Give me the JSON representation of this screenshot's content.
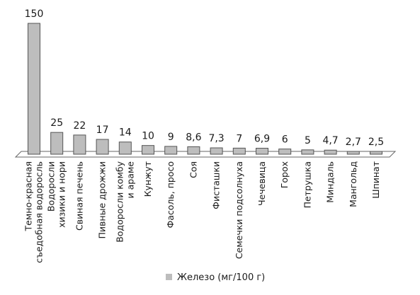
{
  "chart_data": {
    "type": "bar",
    "categories": [
      [
        "Темно-красная",
        "съедобная водоросль"
      ],
      [
        "Водоросли",
        "хизики и нори"
      ],
      [
        "Свиная печень"
      ],
      [
        "Пивные дрожжи"
      ],
      [
        "Водоросли комбу",
        "и араме"
      ],
      [
        "Кунжут"
      ],
      [
        "Фасоль, просо"
      ],
      [
        "Соя"
      ],
      [
        "Фисташки"
      ],
      [
        "Семечки подсолнуха"
      ],
      [
        "Чечевица"
      ],
      [
        "Горох"
      ],
      [
        "Петрушка"
      ],
      [
        "Миндаль"
      ],
      [
        "Мангольд"
      ],
      [
        "Шпинат"
      ]
    ],
    "series": [
      {
        "name": "Железо (мг/100 г)",
        "values": [
          150,
          25,
          22,
          17,
          14,
          10,
          9,
          8.6,
          7.3,
          7,
          6.9,
          6,
          5,
          4.7,
          2.7,
          2.5
        ],
        "value_labels": [
          "150",
          "25",
          "22",
          "17",
          "14",
          "10",
          "9",
          "8,6",
          "7,3",
          "7",
          "6,9",
          "6",
          "5",
          "4,7",
          "2,7",
          "2,5"
        ]
      }
    ],
    "ylim": [
      0,
      150
    ],
    "grid": false,
    "legend_position": "bottom-center",
    "colors": {
      "bar_fill": "#bdbdbd",
      "bar_stroke": "#555555",
      "floor_stroke": "#666666"
    }
  }
}
